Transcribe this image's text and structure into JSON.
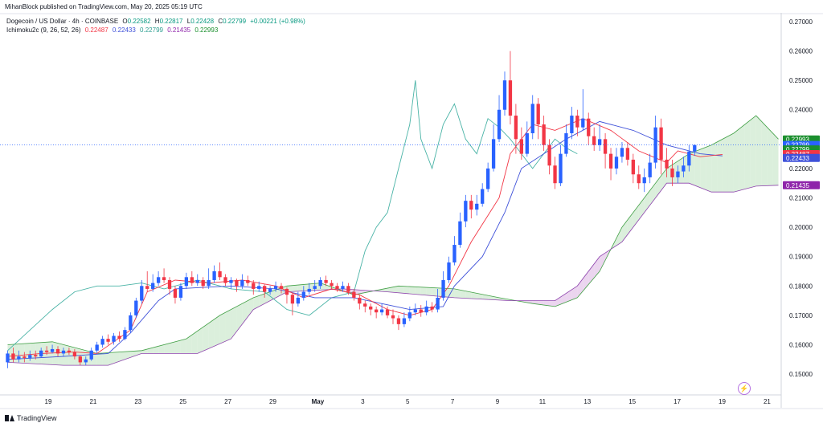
{
  "publisher": "MihanBlock published on TradingView.com, May 20, 2025 05:19 UTC",
  "symbol": {
    "name": "Dogecoin / US Dollar · 4h · COINBASE",
    "open_label": "O",
    "open": "0.22582",
    "high_label": "H",
    "high": "0.22817",
    "low_label": "L",
    "low": "0.22428",
    "close_label": "C",
    "close": "0.22799",
    "change": "+0.00221 (+0.98%)"
  },
  "indicator": {
    "name": "Ichimoku2c (9, 26, 52, 26)",
    "v1": "0.22487",
    "v2": "0.22433",
    "v3": "0.22799",
    "v4": "0.21435",
    "v5": "0.22993"
  },
  "logo": "TradingView",
  "colors": {
    "up": "#2962ff",
    "down": "#f23645",
    "conversion": "#f23645",
    "base": "#3f51d9",
    "lagging": "#49b3a6",
    "spanA": "#43a047",
    "spanB": "#8e44ad",
    "cloud_bull": "#c8e6c9",
    "cloud_bear": "#e1bee7"
  },
  "chart_data": {
    "type": "candlestick",
    "y_ticks": [
      "0.27000",
      "0.26000",
      "0.25000",
      "0.24000",
      "0.23000",
      "0.22000",
      "0.21000",
      "0.20000",
      "0.19000",
      "0.18000",
      "0.17000",
      "0.16000",
      "0.15000"
    ],
    "ylim": [
      0.144,
      0.273
    ],
    "x_ticks": [
      "19",
      "21",
      "23",
      "25",
      "27",
      "29",
      "May",
      "3",
      "5",
      "7",
      "9",
      "11",
      "13",
      "15",
      "17",
      "19",
      "21"
    ],
    "price_labels": [
      {
        "value": "0.22993",
        "color": "#1b8f2e",
        "price": 0.2299
      },
      {
        "value": "0.22799",
        "color": "#2962ff",
        "price": 0.228,
        "countdown": "02:40:21"
      },
      {
        "value": "0.22799",
        "color": "#1b8f2e",
        "price": 0.2265
      },
      {
        "value": "0.22487",
        "color": "#f23645",
        "price": 0.2249
      },
      {
        "value": "0.22433",
        "color": "#3f51d9",
        "price": 0.2236
      },
      {
        "value": "0.21435",
        "color": "#8e24aa",
        "price": 0.2143
      }
    ],
    "candles": [
      [
        0.154,
        0.157,
        0.158,
        0.152
      ],
      [
        0.157,
        0.155,
        0.159,
        0.154
      ],
      [
        0.155,
        0.156,
        0.158,
        0.154
      ],
      [
        0.156,
        0.1555,
        0.1575,
        0.154
      ],
      [
        0.1555,
        0.1565,
        0.158,
        0.1545
      ],
      [
        0.1565,
        0.156,
        0.158,
        0.155
      ],
      [
        0.156,
        0.158,
        0.159,
        0.1555
      ],
      [
        0.158,
        0.1575,
        0.1595,
        0.1565
      ],
      [
        0.1575,
        0.1585,
        0.16,
        0.157
      ],
      [
        0.1585,
        0.157,
        0.1595,
        0.156
      ],
      [
        0.157,
        0.158,
        0.159,
        0.156
      ],
      [
        0.158,
        0.1575,
        0.159,
        0.1565
      ],
      [
        0.1575,
        0.156,
        0.1585,
        0.155
      ],
      [
        0.156,
        0.154,
        0.1565,
        0.153
      ],
      [
        0.154,
        0.155,
        0.156,
        0.153
      ],
      [
        0.155,
        0.158,
        0.159,
        0.1545
      ],
      [
        0.158,
        0.16,
        0.161,
        0.157
      ],
      [
        0.16,
        0.162,
        0.163,
        0.159
      ],
      [
        0.162,
        0.161,
        0.1635,
        0.16
      ],
      [
        0.161,
        0.163,
        0.164,
        0.16
      ],
      [
        0.163,
        0.162,
        0.1645,
        0.161
      ],
      [
        0.162,
        0.165,
        0.166,
        0.1615
      ],
      [
        0.165,
        0.17,
        0.171,
        0.164
      ],
      [
        0.17,
        0.175,
        0.176,
        0.169
      ],
      [
        0.175,
        0.18,
        0.182,
        0.174
      ],
      [
        0.18,
        0.179,
        0.185,
        0.178
      ],
      [
        0.179,
        0.181,
        0.184,
        0.178
      ],
      [
        0.181,
        0.183,
        0.185,
        0.18
      ],
      [
        0.183,
        0.182,
        0.186,
        0.181
      ],
      [
        0.182,
        0.179,
        0.183,
        0.177
      ],
      [
        0.179,
        0.176,
        0.18,
        0.174
      ],
      [
        0.176,
        0.18,
        0.181,
        0.175
      ],
      [
        0.18,
        0.183,
        0.1845,
        0.179
      ],
      [
        0.183,
        0.181,
        0.185,
        0.18
      ],
      [
        0.181,
        0.182,
        0.184,
        0.18
      ],
      [
        0.182,
        0.18,
        0.183,
        0.179
      ],
      [
        0.18,
        0.182,
        0.186,
        0.179
      ],
      [
        0.182,
        0.185,
        0.187,
        0.181
      ],
      [
        0.185,
        0.183,
        0.188,
        0.182
      ],
      [
        0.183,
        0.181,
        0.184,
        0.18
      ],
      [
        0.181,
        0.182,
        0.183,
        0.179
      ],
      [
        0.182,
        0.18,
        0.1825,
        0.178
      ],
      [
        0.18,
        0.182,
        0.184,
        0.179
      ],
      [
        0.182,
        0.181,
        0.1835,
        0.18
      ],
      [
        0.181,
        0.179,
        0.182,
        0.177
      ],
      [
        0.179,
        0.18,
        0.1815,
        0.178
      ],
      [
        0.18,
        0.178,
        0.1805,
        0.176
      ],
      [
        0.178,
        0.179,
        0.18,
        0.177
      ],
      [
        0.179,
        0.18,
        0.1815,
        0.178
      ],
      [
        0.18,
        0.179,
        0.181,
        0.1775
      ],
      [
        0.179,
        0.177,
        0.1795,
        0.174
      ],
      [
        0.177,
        0.174,
        0.1775,
        0.17
      ],
      [
        0.174,
        0.176,
        0.178,
        0.173
      ],
      [
        0.176,
        0.178,
        0.18,
        0.175
      ],
      [
        0.178,
        0.179,
        0.181,
        0.177
      ],
      [
        0.179,
        0.18,
        0.182,
        0.178
      ],
      [
        0.18,
        0.182,
        0.183,
        0.179
      ],
      [
        0.182,
        0.181,
        0.1835,
        0.18
      ],
      [
        0.181,
        0.18,
        0.182,
        0.179
      ],
      [
        0.18,
        0.179,
        0.181,
        0.178
      ],
      [
        0.179,
        0.18,
        0.1815,
        0.178
      ],
      [
        0.18,
        0.178,
        0.181,
        0.177
      ],
      [
        0.178,
        0.176,
        0.179,
        0.175
      ],
      [
        0.176,
        0.174,
        0.177,
        0.172
      ],
      [
        0.174,
        0.173,
        0.175,
        0.171
      ],
      [
        0.173,
        0.172,
        0.174,
        0.17
      ],
      [
        0.172,
        0.171,
        0.173,
        0.169
      ],
      [
        0.171,
        0.172,
        0.174,
        0.17
      ],
      [
        0.172,
        0.17,
        0.173,
        0.169
      ],
      [
        0.17,
        0.169,
        0.172,
        0.167
      ],
      [
        0.169,
        0.167,
        0.17,
        0.165
      ],
      [
        0.167,
        0.169,
        0.171,
        0.166
      ],
      [
        0.169,
        0.171,
        0.173,
        0.168
      ],
      [
        0.171,
        0.172,
        0.174,
        0.17
      ],
      [
        0.172,
        0.171,
        0.1735,
        0.1695
      ],
      [
        0.171,
        0.173,
        0.175,
        0.17
      ],
      [
        0.173,
        0.172,
        0.1745,
        0.171
      ],
      [
        0.172,
        0.176,
        0.179,
        0.171
      ],
      [
        0.176,
        0.182,
        0.185,
        0.175
      ],
      [
        0.182,
        0.188,
        0.19,
        0.181
      ],
      [
        0.188,
        0.194,
        0.197,
        0.187
      ],
      [
        0.194,
        0.202,
        0.205,
        0.193
      ],
      [
        0.202,
        0.209,
        0.211,
        0.2
      ],
      [
        0.209,
        0.206,
        0.211,
        0.203
      ],
      [
        0.206,
        0.208,
        0.211,
        0.204
      ],
      [
        0.208,
        0.213,
        0.215,
        0.207
      ],
      [
        0.213,
        0.22,
        0.222,
        0.212
      ],
      [
        0.22,
        0.23,
        0.235,
        0.219
      ],
      [
        0.23,
        0.24,
        0.245,
        0.229
      ],
      [
        0.24,
        0.25,
        0.253,
        0.238
      ],
      [
        0.25,
        0.238,
        0.26,
        0.235
      ],
      [
        0.238,
        0.23,
        0.242,
        0.225
      ],
      [
        0.23,
        0.225,
        0.234,
        0.223
      ],
      [
        0.225,
        0.232,
        0.236,
        0.224
      ],
      [
        0.232,
        0.242,
        0.245,
        0.23
      ],
      [
        0.242,
        0.235,
        0.244,
        0.23
      ],
      [
        0.235,
        0.228,
        0.238,
        0.226
      ],
      [
        0.228,
        0.221,
        0.23,
        0.218
      ],
      [
        0.221,
        0.215,
        0.224,
        0.213
      ],
      [
        0.215,
        0.225,
        0.228,
        0.214
      ],
      [
        0.225,
        0.232,
        0.235,
        0.224
      ],
      [
        0.232,
        0.238,
        0.241,
        0.23
      ],
      [
        0.238,
        0.234,
        0.24,
        0.231
      ],
      [
        0.234,
        0.237,
        0.247,
        0.233
      ],
      [
        0.237,
        0.231,
        0.239,
        0.228
      ],
      [
        0.231,
        0.228,
        0.234,
        0.226
      ],
      [
        0.228,
        0.23,
        0.235,
        0.226
      ],
      [
        0.23,
        0.225,
        0.232,
        0.22
      ],
      [
        0.225,
        0.22,
        0.227,
        0.216
      ],
      [
        0.22,
        0.224,
        0.227,
        0.218
      ],
      [
        0.224,
        0.227,
        0.229,
        0.222
      ],
      [
        0.227,
        0.223,
        0.229,
        0.221
      ],
      [
        0.223,
        0.218,
        0.225,
        0.215
      ],
      [
        0.218,
        0.215,
        0.221,
        0.213
      ],
      [
        0.215,
        0.217,
        0.22,
        0.212
      ],
      [
        0.217,
        0.222,
        0.225,
        0.215
      ],
      [
        0.222,
        0.234,
        0.238,
        0.22
      ],
      [
        0.234,
        0.223,
        0.237,
        0.218
      ],
      [
        0.223,
        0.22,
        0.227,
        0.217
      ],
      [
        0.22,
        0.217,
        0.223,
        0.214
      ],
      [
        0.217,
        0.219,
        0.221,
        0.215
      ],
      [
        0.219,
        0.221,
        0.224,
        0.217
      ],
      [
        0.221,
        0.2258,
        0.228,
        0.219
      ],
      [
        0.2258,
        0.228,
        0.2282,
        0.2243
      ]
    ],
    "conversion_line": [
      [
        0,
        0.156
      ],
      [
        6,
        0.157
      ],
      [
        12,
        0.1575
      ],
      [
        16,
        0.157
      ],
      [
        22,
        0.165
      ],
      [
        25,
        0.178
      ],
      [
        30,
        0.182
      ],
      [
        36,
        0.181
      ],
      [
        42,
        0.182
      ],
      [
        48,
        0.18
      ],
      [
        53,
        0.176
      ],
      [
        58,
        0.179
      ],
      [
        63,
        0.177
      ],
      [
        68,
        0.172
      ],
      [
        72,
        0.17
      ],
      [
        76,
        0.172
      ],
      [
        79,
        0.18
      ],
      [
        83,
        0.195
      ],
      [
        88,
        0.21
      ],
      [
        90,
        0.225
      ],
      [
        94,
        0.235
      ],
      [
        98,
        0.233
      ],
      [
        103,
        0.237
      ],
      [
        108,
        0.233
      ],
      [
        113,
        0.226
      ],
      [
        118,
        0.222
      ],
      [
        120,
        0.226
      ],
      [
        124,
        0.224
      ],
      [
        128,
        0.2248
      ]
    ],
    "base_line": [
      [
        0,
        0.155
      ],
      [
        10,
        0.156
      ],
      [
        18,
        0.157
      ],
      [
        22,
        0.164
      ],
      [
        27,
        0.175
      ],
      [
        30,
        0.179
      ],
      [
        40,
        0.18
      ],
      [
        48,
        0.179
      ],
      [
        55,
        0.176
      ],
      [
        62,
        0.176
      ],
      [
        72,
        0.172
      ],
      [
        78,
        0.173
      ],
      [
        80,
        0.18
      ],
      [
        85,
        0.19
      ],
      [
        89,
        0.205
      ],
      [
        92,
        0.22
      ],
      [
        96,
        0.225
      ],
      [
        100,
        0.23
      ],
      [
        106,
        0.236
      ],
      [
        112,
        0.233
      ],
      [
        118,
        0.228
      ],
      [
        124,
        0.225
      ],
      [
        128,
        0.2243
      ]
    ],
    "lagging_span": [
      [
        0,
        0.158
      ],
      [
        4,
        0.165
      ],
      [
        8,
        0.172
      ],
      [
        12,
        0.178
      ],
      [
        16,
        0.18
      ],
      [
        20,
        0.18
      ],
      [
        24,
        0.181
      ],
      [
        28,
        0.179
      ],
      [
        34,
        0.182
      ],
      [
        40,
        0.179
      ],
      [
        46,
        0.178
      ],
      [
        50,
        0.172
      ],
      [
        54,
        0.17
      ],
      [
        58,
        0.176
      ],
      [
        62,
        0.178
      ],
      [
        64,
        0.192
      ],
      [
        66,
        0.2
      ],
      [
        68,
        0.205
      ],
      [
        70,
        0.22
      ],
      [
        72,
        0.235
      ],
      [
        73,
        0.25
      ],
      [
        74,
        0.23
      ],
      [
        76,
        0.22
      ],
      [
        78,
        0.235
      ],
      [
        80,
        0.242
      ],
      [
        82,
        0.23
      ],
      [
        84,
        0.225
      ],
      [
        86,
        0.237
      ],
      [
        88,
        0.234
      ],
      [
        90,
        0.23
      ],
      [
        92,
        0.225
      ],
      [
        94,
        0.22
      ],
      [
        96,
        0.225
      ],
      [
        98,
        0.23
      ],
      [
        100,
        0.227
      ],
      [
        102,
        0.225
      ]
    ],
    "span_a": [
      [
        0,
        0.16
      ],
      [
        8,
        0.161
      ],
      [
        16,
        0.157
      ],
      [
        24,
        0.158
      ],
      [
        32,
        0.162
      ],
      [
        38,
        0.17
      ],
      [
        44,
        0.176
      ],
      [
        50,
        0.18
      ],
      [
        56,
        0.181
      ],
      [
        62,
        0.177
      ],
      [
        70,
        0.18
      ],
      [
        80,
        0.179
      ],
      [
        88,
        0.176
      ],
      [
        94,
        0.174
      ],
      [
        98,
        0.173
      ],
      [
        102,
        0.176
      ],
      [
        106,
        0.185
      ],
      [
        110,
        0.2
      ],
      [
        114,
        0.21
      ],
      [
        118,
        0.22
      ],
      [
        122,
        0.225
      ],
      [
        126,
        0.228
      ],
      [
        130,
        0.232
      ],
      [
        134,
        0.238
      ],
      [
        138,
        0.23
      ]
    ],
    "span_b": [
      [
        0,
        0.154
      ],
      [
        10,
        0.153
      ],
      [
        18,
        0.153
      ],
      [
        24,
        0.157
      ],
      [
        34,
        0.157
      ],
      [
        40,
        0.162
      ],
      [
        44,
        0.172
      ],
      [
        50,
        0.178
      ],
      [
        60,
        0.179
      ],
      [
        68,
        0.178
      ],
      [
        80,
        0.176
      ],
      [
        90,
        0.175
      ],
      [
        98,
        0.175
      ],
      [
        102,
        0.18
      ],
      [
        106,
        0.19
      ],
      [
        110,
        0.195
      ],
      [
        114,
        0.205
      ],
      [
        118,
        0.215
      ],
      [
        122,
        0.215
      ],
      [
        126,
        0.212
      ],
      [
        130,
        0.212
      ],
      [
        134,
        0.214
      ],
      [
        138,
        0.2143
      ]
    ]
  }
}
